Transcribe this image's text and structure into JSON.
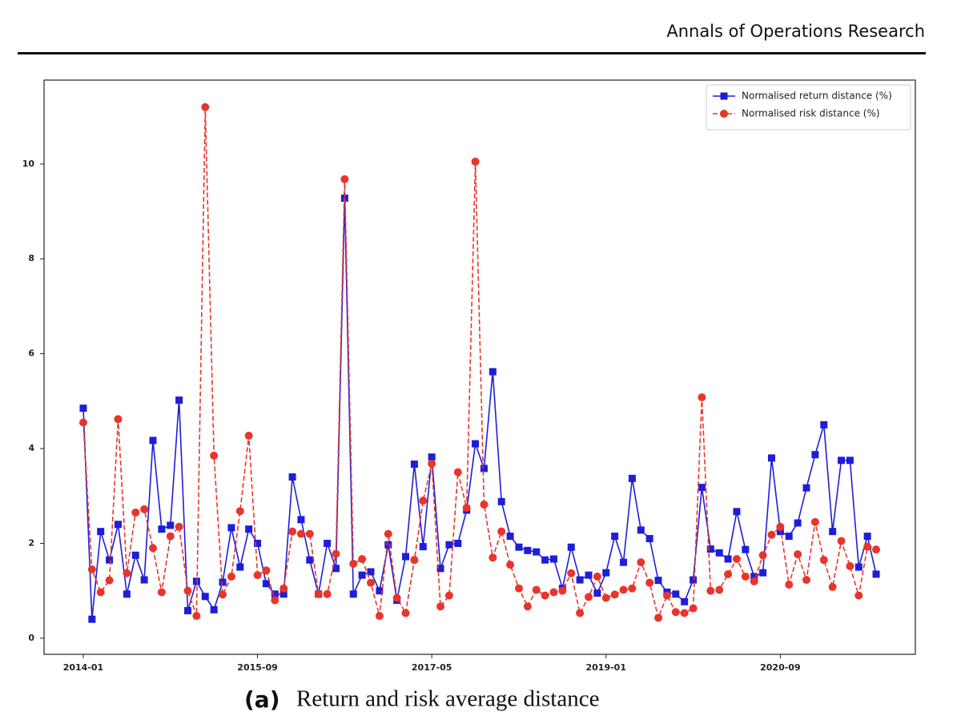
{
  "header": {
    "journal": "Annals of Operations Research"
  },
  "chart_data": {
    "type": "line",
    "x": [
      "2014-01",
      "2014-02",
      "2014-03",
      "2014-04",
      "2014-05",
      "2014-06",
      "2014-07",
      "2014-08",
      "2014-09",
      "2014-10",
      "2014-11",
      "2014-12",
      "2015-01",
      "2015-02",
      "2015-03",
      "2015-04",
      "2015-05",
      "2015-06",
      "2015-07",
      "2015-08",
      "2015-09",
      "2015-10",
      "2015-11",
      "2015-12",
      "2016-01",
      "2016-02",
      "2016-03",
      "2016-04",
      "2016-05",
      "2016-06",
      "2016-07",
      "2016-08",
      "2016-09",
      "2016-10",
      "2016-11",
      "2016-12",
      "2017-01",
      "2017-02",
      "2017-03",
      "2017-04",
      "2017-05",
      "2017-06",
      "2017-07",
      "2017-08",
      "2017-09",
      "2017-10",
      "2017-11",
      "2017-12",
      "2018-01",
      "2018-02",
      "2018-03",
      "2018-04",
      "2018-05",
      "2018-06",
      "2018-07",
      "2018-08",
      "2018-09",
      "2018-10",
      "2018-11",
      "2018-12",
      "2019-01",
      "2019-02",
      "2019-03",
      "2019-04",
      "2019-05",
      "2019-06",
      "2019-07",
      "2019-08",
      "2019-09",
      "2019-10",
      "2019-11",
      "2019-12",
      "2020-01",
      "2020-02",
      "2020-03",
      "2020-04",
      "2020-05",
      "2020-06",
      "2020-07",
      "2020-08",
      "2020-09",
      "2020-10",
      "2020-11",
      "2020-12",
      "2021-01",
      "2021-02",
      "2021-03",
      "2021-04",
      "2021-05",
      "2021-06",
      "2021-07",
      "2021-08"
    ],
    "series": [
      {
        "name": "Normalised return distance (%)",
        "color": "#1e1ed8",
        "linestyle": "solid",
        "marker": "square",
        "values": [
          4.85,
          0.4,
          2.25,
          1.65,
          2.4,
          0.93,
          1.75,
          1.23,
          4.17,
          2.3,
          2.38,
          5.02,
          0.58,
          1.2,
          0.88,
          0.6,
          1.18,
          2.33,
          1.5,
          2.3,
          2.0,
          1.15,
          0.93,
          0.93,
          3.4,
          2.5,
          1.65,
          0.93,
          2.0,
          1.47,
          9.28,
          0.93,
          1.33,
          1.4,
          1.0,
          1.97,
          0.8,
          1.72,
          3.67,
          1.93,
          3.82,
          1.47,
          1.97,
          2.0,
          2.7,
          4.1,
          3.58,
          5.62,
          2.88,
          2.15,
          1.92,
          1.85,
          1.82,
          1.65,
          1.67,
          1.05,
          1.92,
          1.23,
          1.33,
          0.95,
          1.38,
          2.15,
          1.6,
          3.37,
          2.28,
          2.1,
          1.22,
          0.97,
          0.93,
          0.77,
          1.23,
          3.18,
          1.88,
          1.8,
          1.67,
          2.67,
          1.87,
          1.3,
          1.38,
          3.8,
          2.25,
          2.15,
          2.43,
          3.17,
          3.87,
          4.5,
          2.25,
          3.75,
          3.75,
          1.5,
          2.15,
          1.35
        ]
      },
      {
        "name": "Normalised risk distance (%)",
        "color": "#e8352c",
        "linestyle": "dashed",
        "marker": "circle",
        "values": [
          4.55,
          1.45,
          0.97,
          1.22,
          4.62,
          1.37,
          2.65,
          2.72,
          1.9,
          0.97,
          2.15,
          2.35,
          1.0,
          0.47,
          11.2,
          3.85,
          0.92,
          1.3,
          2.68,
          4.27,
          1.33,
          1.43,
          0.8,
          1.05,
          2.25,
          2.2,
          2.2,
          0.93,
          0.93,
          1.78,
          9.68,
          1.57,
          1.67,
          1.17,
          0.47,
          2.2,
          0.85,
          0.53,
          1.65,
          2.9,
          3.68,
          0.67,
          0.9,
          3.5,
          2.75,
          10.05,
          2.82,
          1.7,
          2.25,
          1.55,
          1.05,
          0.67,
          1.02,
          0.9,
          0.97,
          1.0,
          1.37,
          0.53,
          0.87,
          1.3,
          0.85,
          0.92,
          1.02,
          1.05,
          1.6,
          1.17,
          0.43,
          0.9,
          0.55,
          0.53,
          0.63,
          5.08,
          1.0,
          1.02,
          1.35,
          1.67,
          1.3,
          1.2,
          1.75,
          2.18,
          2.35,
          1.13,
          1.77,
          1.23,
          2.45,
          1.65,
          1.08,
          2.05,
          1.52,
          0.9,
          1.93,
          1.87
        ]
      }
    ],
    "xticks": [
      "2014-01",
      "2015-09",
      "2017-05",
      "2019-01",
      "2020-09"
    ],
    "ylim": [
      -0.34,
      11.77
    ],
    "yticks": [
      0,
      2,
      4,
      6,
      8,
      10
    ],
    "grid": false,
    "legend": "upper right"
  },
  "caption": {
    "label": "(a)",
    "text": "Return and risk average distance"
  }
}
